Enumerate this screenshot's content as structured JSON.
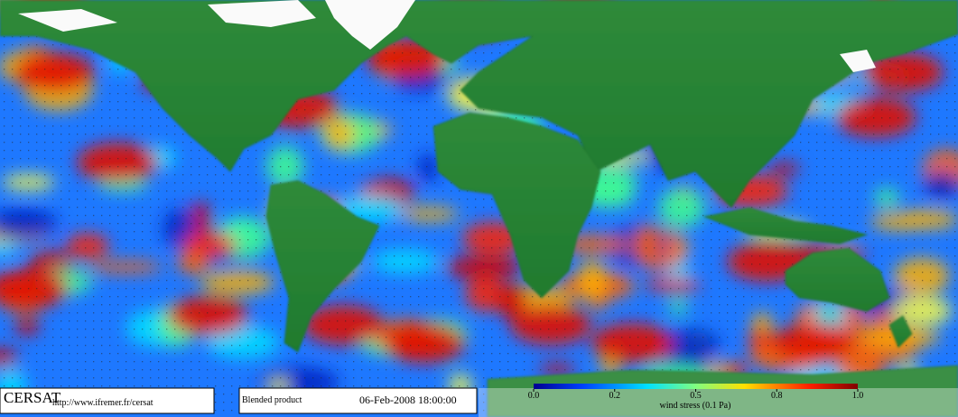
{
  "footer": {
    "logo": "CERSAT",
    "url": "http://www.ifremer.fr/cersat",
    "product": "Blended product",
    "datetime": "06-Feb-2008 18:00:00"
  },
  "colorbar": {
    "label": "wind stress (0.1 Pa)",
    "ticks": [
      {
        "value": 0,
        "label": "0.0"
      },
      {
        "value": 0.2,
        "label": "0.2"
      },
      {
        "value": 0.5,
        "label": "0.5"
      },
      {
        "value": 0.8,
        "label": "0.8"
      },
      {
        "value": 1,
        "label": "1.0"
      }
    ]
  }
}
